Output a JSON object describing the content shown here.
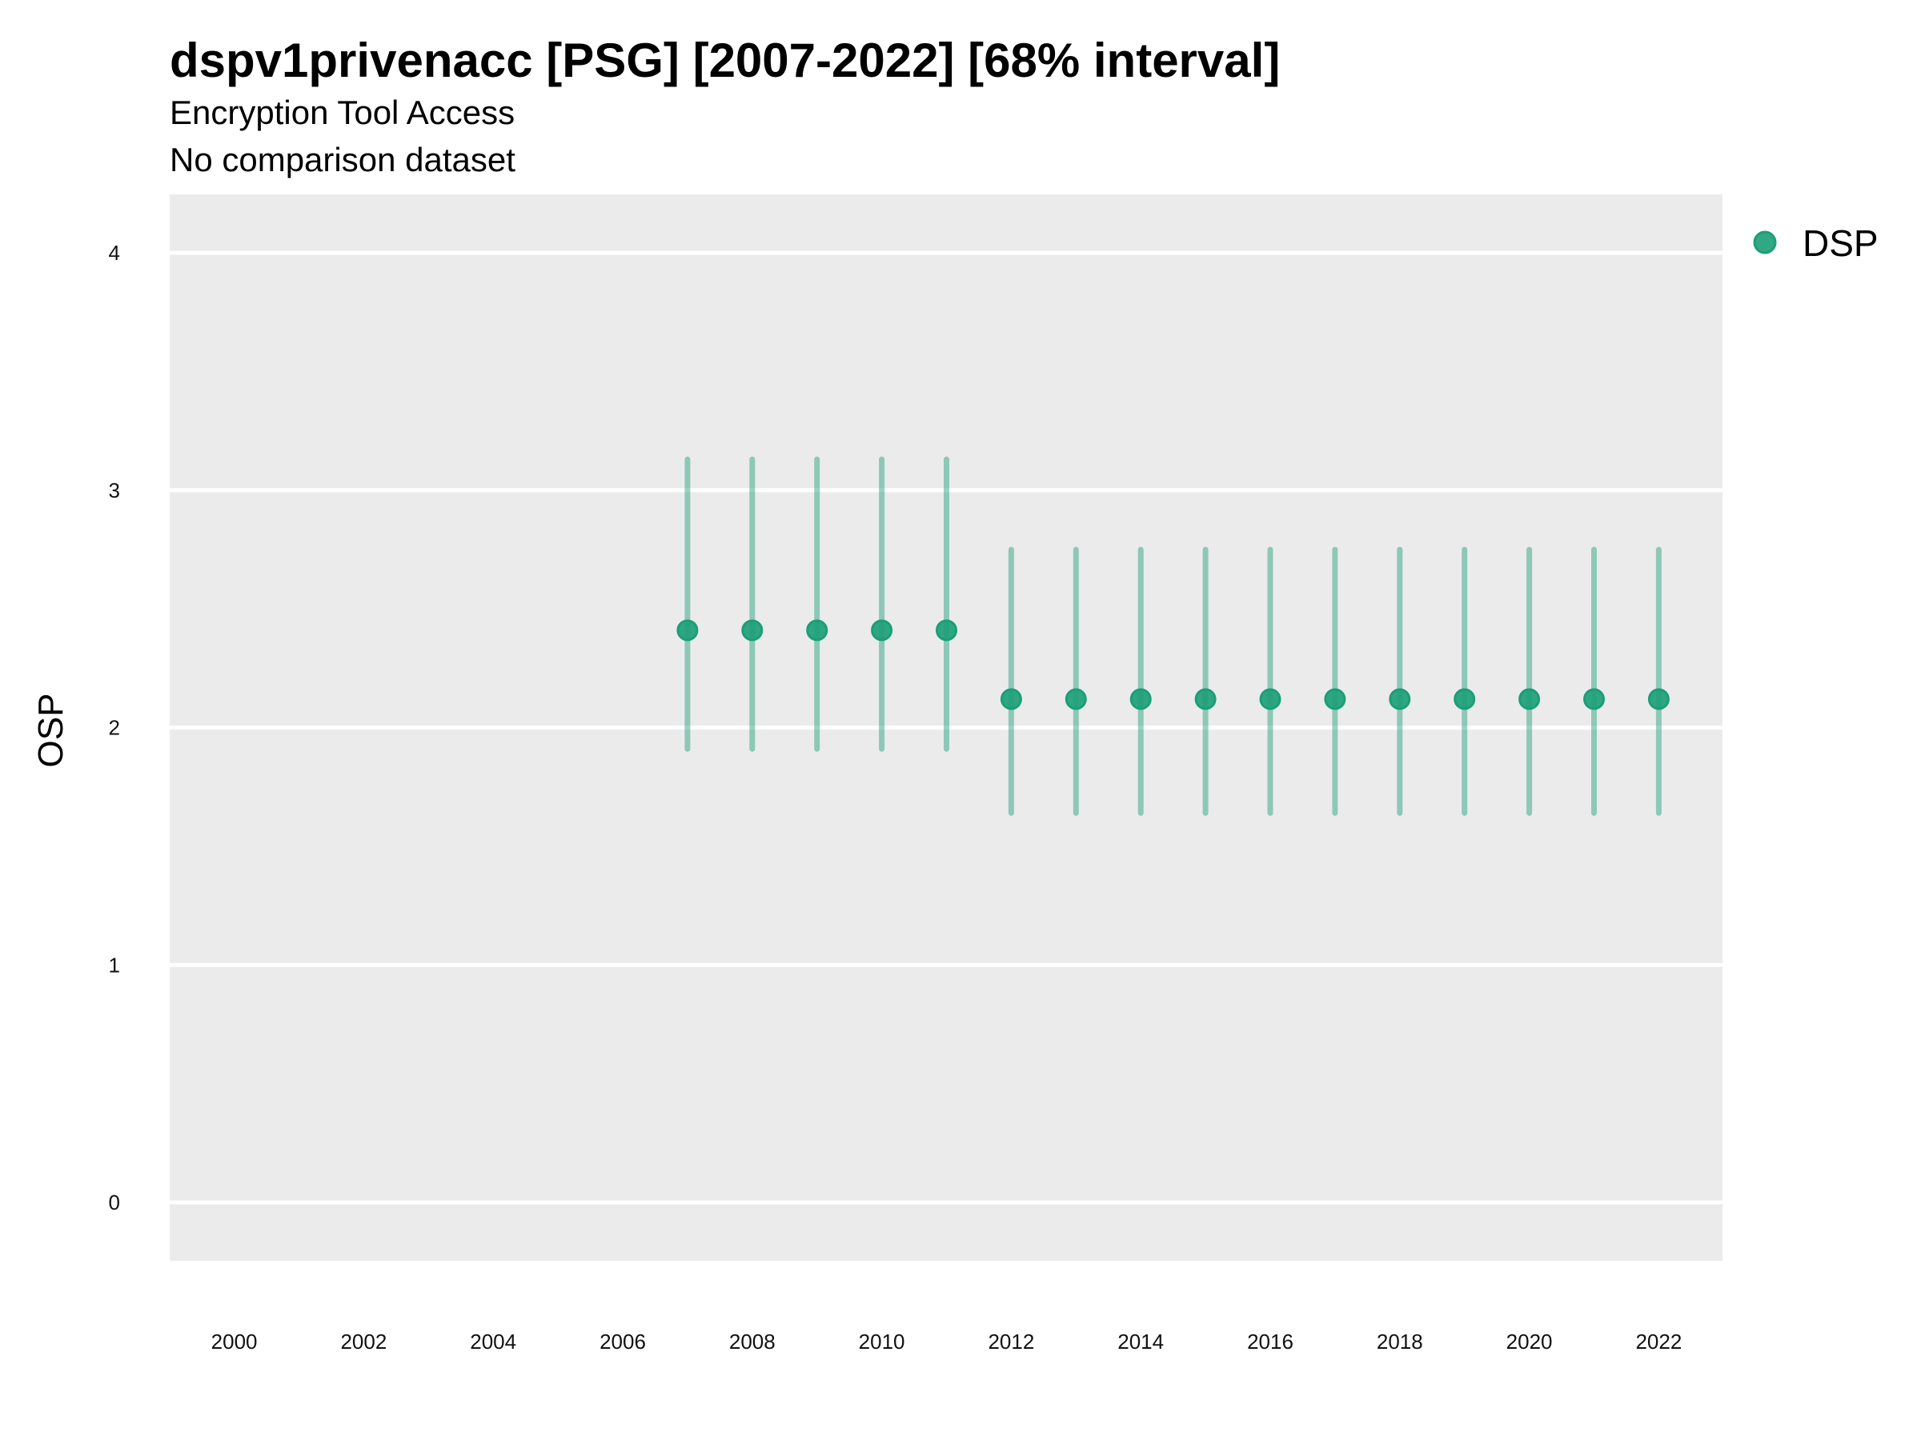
{
  "chart_data": {
    "type": "scatter",
    "title": "dspv1privenacc [PSG] [2007-2022] [68% interval]",
    "subtitle": "Encryption Tool Access",
    "caption_line": "No comparison dataset",
    "xlabel": "",
    "ylabel": "OSP",
    "xlim": [
      1999,
      2023
    ],
    "ylim": [
      -0.25,
      4.25
    ],
    "x_ticks": [
      2000,
      2002,
      2004,
      2006,
      2008,
      2010,
      2012,
      2014,
      2016,
      2018,
      2020,
      2022
    ],
    "y_ticks": [
      0,
      1,
      2,
      3,
      4
    ],
    "grid": true,
    "legend": {
      "position": "right",
      "entries": [
        "DSP"
      ]
    },
    "colors": {
      "point": "#1b9e77",
      "panel": "#ebebeb",
      "grid": "#ffffff"
    },
    "series": [
      {
        "name": "DSP",
        "x": [
          2007,
          2008,
          2009,
          2010,
          2011,
          2012,
          2013,
          2014,
          2015,
          2016,
          2017,
          2018,
          2019,
          2020,
          2021,
          2022
        ],
        "y": [
          2.41,
          2.41,
          2.41,
          2.41,
          2.41,
          2.12,
          2.12,
          2.12,
          2.12,
          2.12,
          2.12,
          2.12,
          2.12,
          2.12,
          2.12,
          2.12
        ],
        "lower": [
          1.91,
          1.91,
          1.91,
          1.91,
          1.91,
          1.64,
          1.64,
          1.64,
          1.64,
          1.64,
          1.64,
          1.64,
          1.64,
          1.64,
          1.64,
          1.64
        ],
        "upper": [
          3.13,
          3.13,
          3.13,
          3.13,
          3.13,
          2.75,
          2.75,
          2.75,
          2.75,
          2.75,
          2.75,
          2.75,
          2.75,
          2.75,
          2.75,
          2.75
        ]
      }
    ]
  }
}
